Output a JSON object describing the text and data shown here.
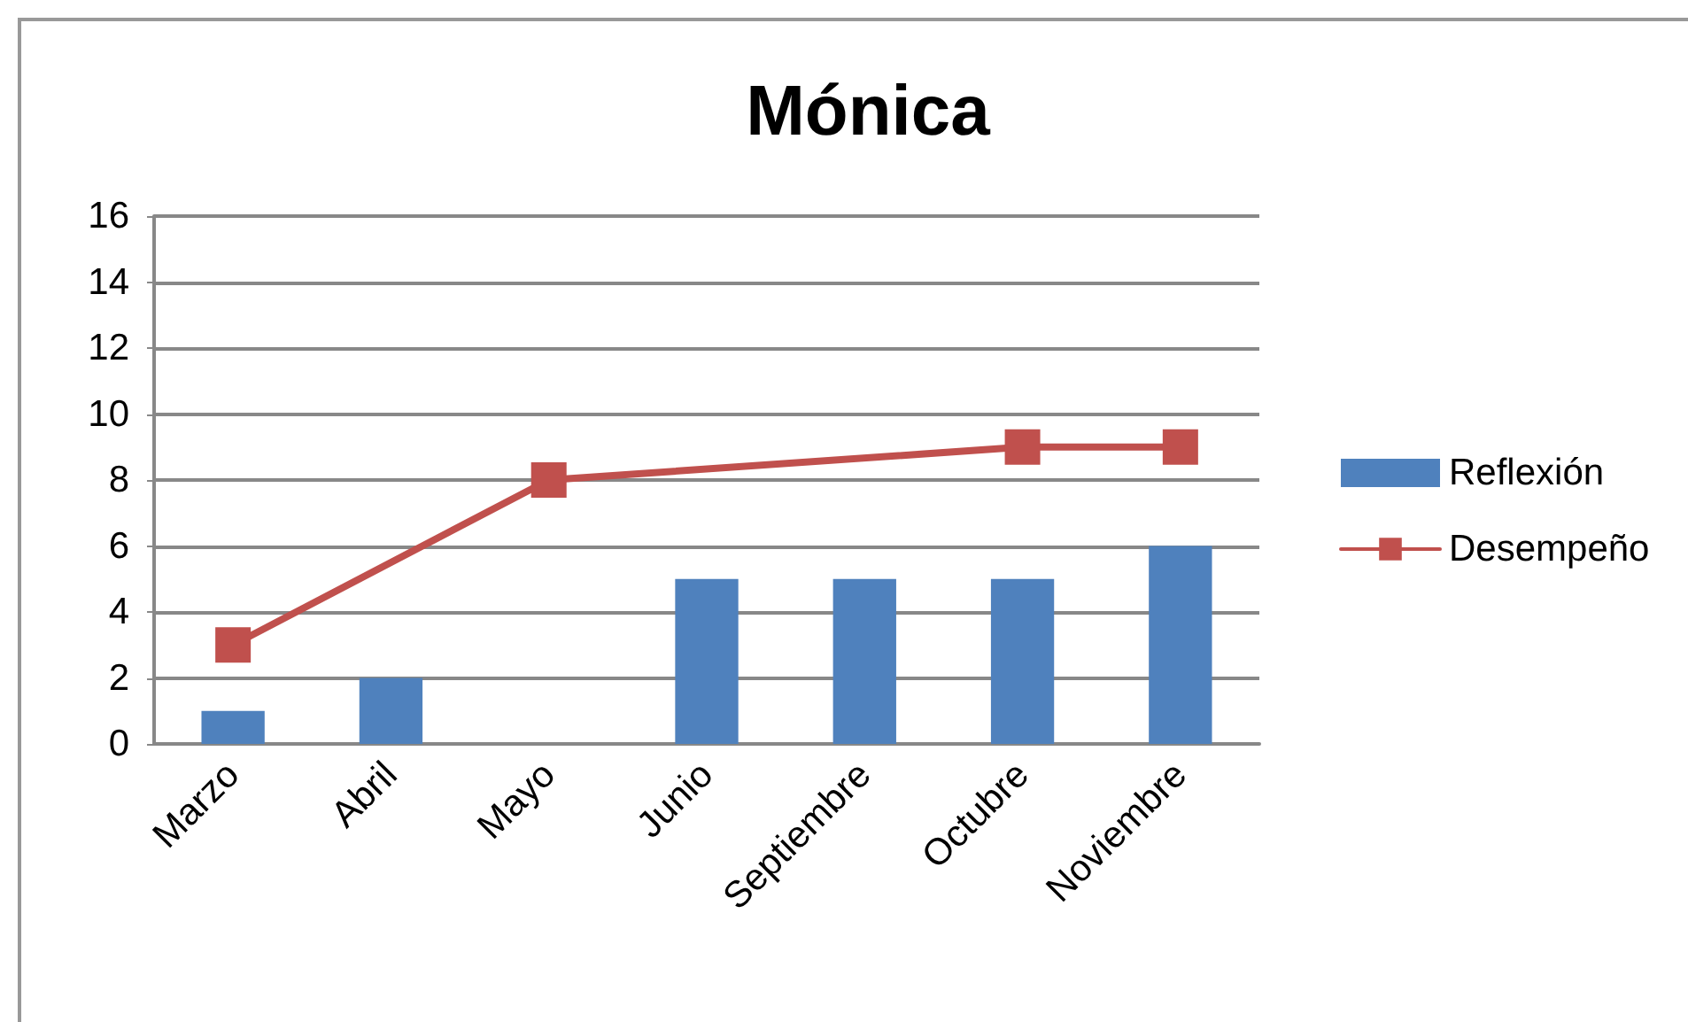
{
  "chart_data": {
    "type": "bar",
    "title": "Mónica",
    "categories": [
      "Marzo",
      "Abril",
      "Mayo",
      "Junio",
      "Septiembre",
      "Octubre",
      "Noviembre"
    ],
    "series": [
      {
        "name": "Reflexión",
        "color": "#4f81bd",
        "values": [
          1,
          2,
          null,
          5,
          5,
          5,
          6
        ]
      },
      {
        "name": "Desempeño",
        "type": "line",
        "color": "#c0504d",
        "values": [
          3,
          null,
          8,
          null,
          null,
          9,
          9
        ]
      }
    ],
    "ylim": [
      0,
      16
    ],
    "yticks": [
      0,
      2,
      4,
      6,
      8,
      10,
      12,
      14,
      16
    ],
    "grid": "y",
    "legend": "right",
    "marker": "square",
    "line_style": "solid"
  }
}
